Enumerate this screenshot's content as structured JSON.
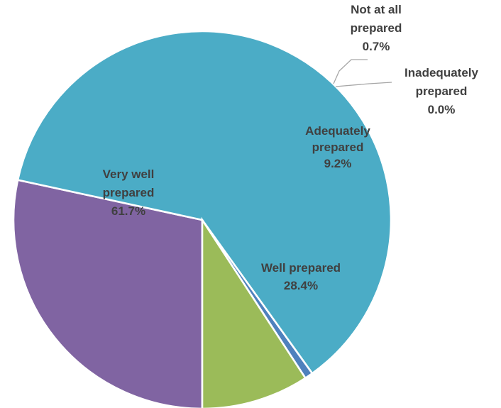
{
  "chart_data": {
    "type": "pie",
    "title": "",
    "legend": "none",
    "slices": [
      {
        "name": "Well prepared",
        "label_lines": [
          "Well prepared",
          "28.4%"
        ],
        "value": 28.4,
        "percent_label": "28.4%",
        "color": "#8064a2"
      },
      {
        "name": "Very well prepared",
        "label_lines": [
          "Very well",
          "prepared",
          "61.7%"
        ],
        "value": 61.7,
        "percent_label": "61.7%",
        "color": "#4bacc6"
      },
      {
        "name": "Not at all prepared",
        "label_lines": [
          "Not at all",
          "prepared",
          "0.7%"
        ],
        "value": 0.7,
        "percent_label": "0.7%",
        "color": "#4f81bd"
      },
      {
        "name": "Inadequately prepared",
        "label_lines": [
          "Inadequately",
          "prepared",
          "0.0%"
        ],
        "value": 0.0,
        "percent_label": "0.0%",
        "color": "#c0504d"
      },
      {
        "name": "Adequately prepared",
        "label_lines": [
          "Adequately",
          "prepared",
          "9.2%"
        ],
        "value": 9.2,
        "percent_label": "9.2%",
        "color": "#9bbb59"
      }
    ]
  }
}
